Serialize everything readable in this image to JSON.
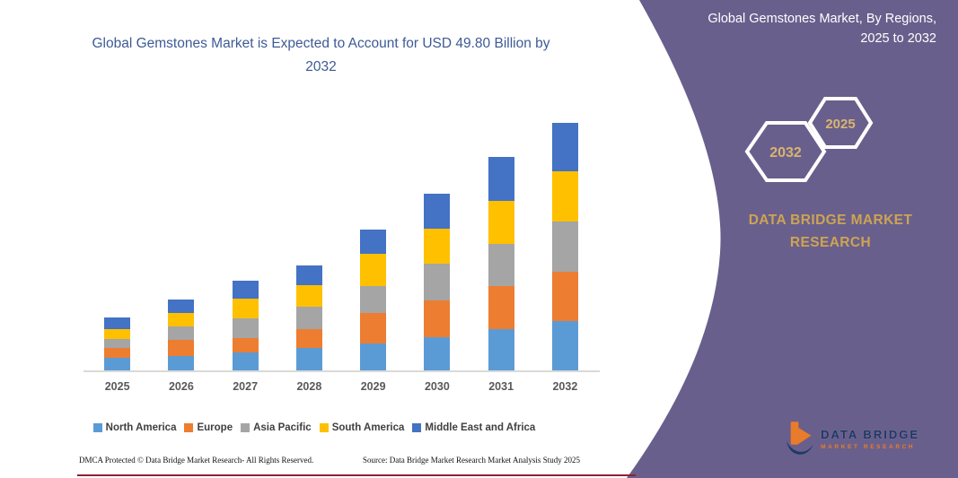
{
  "chart": {
    "title": "Global Gemstones Market is Expected to Account for USD 49.80 Billion by 2032"
  },
  "chart_data": {
    "type": "bar",
    "stacked": true,
    "title": "Global Gemstones Market is Expected to Account for USD 49.80 Billion by 2032",
    "unit": "USD Billion",
    "categories": [
      "2025",
      "2026",
      "2027",
      "2028",
      "2029",
      "2030",
      "2031",
      "2032"
    ],
    "series": [
      {
        "name": "North America",
        "color": "#5b9bd5",
        "values": [
          2.5,
          2.9,
          3.6,
          4.5,
          5.4,
          6.7,
          8.3,
          9.9
        ]
      },
      {
        "name": "Europe",
        "color": "#ed7d31",
        "values": [
          2.0,
          3.2,
          2.9,
          3.8,
          6.1,
          7.4,
          8.7,
          9.9
        ]
      },
      {
        "name": "Asia Pacific",
        "color": "#a5a5a5",
        "values": [
          1.8,
          2.7,
          4.0,
          4.5,
          5.4,
          7.4,
          8.5,
          10.1
        ]
      },
      {
        "name": "South America",
        "color": "#ffc000",
        "values": [
          2.0,
          2.7,
          4.0,
          4.3,
          6.5,
          7.0,
          8.7,
          10.1
        ]
      },
      {
        "name": "Middle East and Africa",
        "color": "#4472c4",
        "values": [
          2.3,
          2.7,
          3.6,
          4.1,
          4.9,
          7.0,
          8.7,
          9.8
        ]
      }
    ],
    "totals": [
      10.6,
      14.2,
      18.1,
      21.2,
      28.3,
      35.5,
      42.9,
      49.8
    ],
    "ylim": [
      0,
      50
    ],
    "value_axis_visible": false,
    "gridlines": false,
    "legend_position": "bottom"
  },
  "side_panel": {
    "title": "Global Gemstones Market, By Regions, 2025 to 2032",
    "hexagons": [
      {
        "label": "2032"
      },
      {
        "label": "2025"
      }
    ],
    "brand": "DATA BRIDGE MARKET RESEARCH",
    "logo": {
      "name": "DATA BRIDGE",
      "tagline": "MARKET RESEARCH"
    }
  },
  "footer": {
    "dmca": "DMCA Protected © Data Bridge Market Research-  All Rights Reserved.",
    "source": "Source: Data Bridge Market Research  Market Analysis Study 2025"
  },
  "colors": {
    "panel_purple": "#695f8c",
    "title_blue": "#3d5a96",
    "gold": "#cda452",
    "hex_year_gold": "#d9b470",
    "logo_navy": "#1f3864",
    "logo_orange": "#e97c2a",
    "axis_gray": "#d9d9d9",
    "bottom_rule_maroon": "#8b2332"
  }
}
